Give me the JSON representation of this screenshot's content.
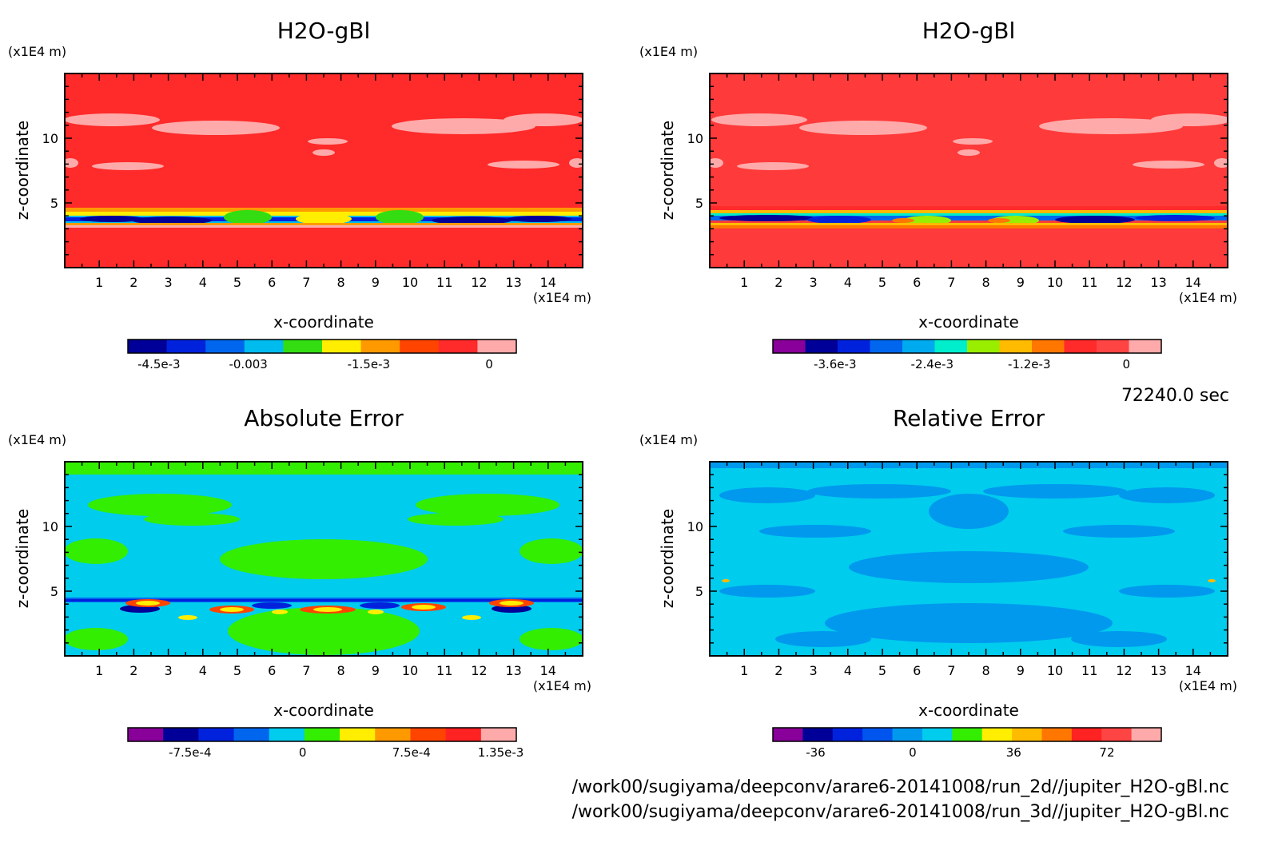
{
  "chart_data": [
    {
      "type": "heatmap",
      "id": "tl",
      "title": "H2O-gBl",
      "xlabel": "x-coordinate",
      "ylabel": "z-coordinate",
      "x_unit": "(x1E4 m)",
      "y_unit": "(x1E4 m)",
      "xlim": [
        0,
        15
      ],
      "ylim": [
        0,
        15
      ],
      "xticks": [
        "1",
        "2",
        "3",
        "4",
        "5",
        "6",
        "7",
        "8",
        "9",
        "10",
        "11",
        "12",
        "13",
        "14"
      ],
      "yticks": [
        "5",
        "10"
      ],
      "colorbar": {
        "colors": [
          "#000099",
          "#0022dd",
          "#0066ee",
          "#00bbee",
          "#33dd11",
          "#ffee00",
          "#ff9900",
          "#ff4400",
          "#ff2a2a",
          "#ffaaaa"
        ],
        "tick_labels": [
          "-4.5e-3",
          "-0.003",
          "-1.5e-3",
          "0"
        ]
      }
    },
    {
      "type": "heatmap",
      "id": "tr",
      "title": "H2O-gBl",
      "xlabel": "x-coordinate",
      "ylabel": "z-coordinate",
      "x_unit": "(x1E4 m)",
      "y_unit": "(x1E4 m)",
      "xlim": [
        0,
        15
      ],
      "ylim": [
        0,
        15
      ],
      "xticks": [
        "1",
        "2",
        "3",
        "4",
        "5",
        "6",
        "7",
        "8",
        "9",
        "10",
        "11",
        "12",
        "13",
        "14"
      ],
      "yticks": [
        "5",
        "10"
      ],
      "colorbar": {
        "colors": [
          "#880099",
          "#000099",
          "#0022dd",
          "#0066ee",
          "#00aaee",
          "#00eecc",
          "#99ee00",
          "#ffbb00",
          "#ff7700",
          "#ff2a2a",
          "#ff4444",
          "#ffaaaa"
        ],
        "tick_labels": [
          "-3.6e-3",
          "-2.4e-3",
          "-1.2e-3",
          "0"
        ]
      }
    },
    {
      "type": "heatmap",
      "id": "bl",
      "title": "Absolute Error",
      "xlabel": "x-coordinate",
      "ylabel": "z-coordinate",
      "x_unit": "(x1E4 m)",
      "y_unit": "(x1E4 m)",
      "xlim": [
        0,
        15
      ],
      "ylim": [
        0,
        15
      ],
      "xticks": [
        "1",
        "2",
        "3",
        "4",
        "5",
        "6",
        "7",
        "8",
        "9",
        "10",
        "11",
        "12",
        "13",
        "14"
      ],
      "yticks": [
        "5",
        "10"
      ],
      "colorbar": {
        "colors": [
          "#880099",
          "#000099",
          "#0022dd",
          "#0066ee",
          "#00ccee",
          "#33ee00",
          "#ffee00",
          "#ff9900",
          "#ff4400",
          "#ff2222",
          "#ffaaaa"
        ],
        "tick_labels": [
          "-7.5e-4",
          "0",
          "7.5e-4",
          "1.35e-3"
        ]
      }
    },
    {
      "type": "heatmap",
      "id": "br",
      "title": "Relative Error",
      "xlabel": "x-coordinate",
      "ylabel": "z-coordinate",
      "x_unit": "(x1E4 m)",
      "y_unit": "(x1E4 m)",
      "xlim": [
        0,
        15
      ],
      "ylim": [
        0,
        15
      ],
      "xticks": [
        "1",
        "2",
        "3",
        "4",
        "5",
        "6",
        "7",
        "8",
        "9",
        "10",
        "11",
        "12",
        "13",
        "14"
      ],
      "yticks": [
        "5",
        "10"
      ],
      "colorbar": {
        "colors": [
          "#880099",
          "#000099",
          "#0022dd",
          "#0055ee",
          "#0099ee",
          "#00ccee",
          "#33ee00",
          "#ffee00",
          "#ffbb00",
          "#ff7700",
          "#ff2222",
          "#ff4444",
          "#ffaaaa"
        ],
        "tick_labels": [
          "-36",
          "0",
          "36",
          "72"
        ]
      }
    }
  ],
  "time_label": "72240.0 sec",
  "file_paths": [
    "/work00/sugiyama/deepconv/arare6-20141008/run_2d//jupiter_H2O-gBl.nc",
    "/work00/sugiyama/deepconv/arare6-20141008/run_3d//jupiter_H2O-gBl.nc"
  ]
}
